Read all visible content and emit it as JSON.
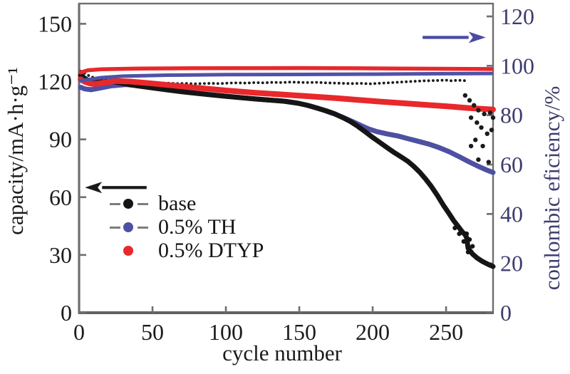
{
  "figure": {
    "xlabel": "cycle number",
    "ylabel_left": "capacity/mA·h·g⁻¹",
    "ylabel_right": "coulombic eficiency/%"
  },
  "legend": {
    "items": [
      {
        "label": "base",
        "marker_color": "#151515",
        "line": true
      },
      {
        "label": "0.5% TH",
        "marker_color": "#4e50a2",
        "line": true
      },
      {
        "label": "0.5% DTYP",
        "marker_color": "#e8282b",
        "line": false
      }
    ]
  },
  "chart_data": {
    "type": "line",
    "xlabel": "cycle number",
    "ylabel_left": "capacity/mA·h·g⁻¹",
    "ylabel_right": "coulombic eficiency/%",
    "xlim": [
      0,
      282
    ],
    "xticks": [
      0,
      50,
      100,
      150,
      200,
      250
    ],
    "ylim_left": [
      0,
      160.5
    ],
    "yticks_left": [
      0,
      30,
      60,
      90,
      120,
      150
    ],
    "ylim_right": [
      0,
      125.2
    ],
    "yticks_right": [
      0,
      20,
      40,
      60,
      80,
      100,
      120
    ],
    "grid": false,
    "legend_position": "lower-left-inside",
    "axis_colors": {
      "left": "#1c1c1c",
      "bottom": "#1c1c1c",
      "right": "#3d3d6e",
      "frame": "#6e6e6e"
    },
    "series": [
      {
        "name": "base-efficiency",
        "axis": "right",
        "color": "#1b1b1b",
        "width": 3.8,
        "style": "dotted",
        "points": [
          [
            1,
            97.8
          ],
          [
            3,
            97.2
          ],
          [
            5,
            96.5
          ],
          [
            8,
            95.6
          ],
          [
            12,
            94.9
          ],
          [
            16,
            94.5
          ],
          [
            20,
            94.4
          ],
          [
            25,
            94.0
          ],
          [
            30,
            93.9
          ],
          [
            35,
            93.6
          ],
          [
            40,
            93.6
          ],
          [
            45,
            93.3
          ],
          [
            50,
            93.2
          ],
          [
            55,
            93.0
          ],
          [
            60,
            93.0
          ],
          [
            66,
            92.8
          ],
          [
            72,
            92.9
          ],
          [
            78,
            92.7
          ],
          [
            84,
            92.8
          ],
          [
            90,
            92.9
          ],
          [
            96,
            92.8
          ],
          [
            102,
            93.0
          ],
          [
            108,
            93.1
          ],
          [
            114,
            93.0
          ],
          [
            120,
            93.2
          ],
          [
            126,
            93.1
          ],
          [
            132,
            93.3
          ],
          [
            138,
            93.2
          ],
          [
            144,
            93.4
          ],
          [
            150,
            93.3
          ],
          [
            156,
            93.2
          ],
          [
            162,
            93.3
          ],
          [
            168,
            93.1
          ],
          [
            174,
            93.0
          ],
          [
            180,
            92.9
          ],
          [
            186,
            92.8
          ],
          [
            192,
            92.9
          ],
          [
            198,
            92.7
          ],
          [
            204,
            92.9
          ],
          [
            210,
            93.1
          ],
          [
            216,
            93.3
          ],
          [
            222,
            93.5
          ],
          [
            228,
            93.7
          ],
          [
            234,
            93.9
          ],
          [
            240,
            94.0
          ],
          [
            246,
            94.1
          ],
          [
            250,
            94.2
          ],
          [
            254,
            93.9
          ],
          [
            258,
            94.2
          ],
          [
            261,
            94.0
          ],
          [
            264,
            94.0
          ]
        ]
      },
      {
        "name": "th-capacity",
        "axis": "left",
        "color": "#4e50a2",
        "width": 7,
        "style": "solid",
        "points": [
          [
            1,
            117.0
          ],
          [
            4,
            116.2
          ],
          [
            8,
            115.8
          ],
          [
            14,
            116.6
          ],
          [
            22,
            117.8
          ],
          [
            32,
            118.5
          ],
          [
            45,
            117.4
          ],
          [
            60,
            115.8
          ],
          [
            80,
            114.0
          ],
          [
            100,
            112.4
          ],
          [
            120,
            111.0
          ],
          [
            140,
            109.8
          ],
          [
            150,
            108.7
          ],
          [
            158,
            107.2
          ],
          [
            166,
            105.3
          ],
          [
            174,
            103.2
          ],
          [
            181,
            101.0
          ],
          [
            187,
            99.0
          ],
          [
            192,
            97.2
          ],
          [
            197,
            95.5
          ],
          [
            203,
            94.0
          ],
          [
            210,
            92.8
          ],
          [
            217,
            91.8
          ],
          [
            224,
            90.4
          ],
          [
            231,
            89.0
          ],
          [
            238,
            87.6
          ],
          [
            245,
            85.8
          ],
          [
            252,
            83.6
          ],
          [
            259,
            81.0
          ],
          [
            266,
            78.2
          ],
          [
            272,
            76.0
          ],
          [
            277,
            74.3
          ],
          [
            282,
            72.8
          ]
        ]
      },
      {
        "name": "base-capacity",
        "axis": "left",
        "color": "#151515",
        "width": 7,
        "style": "solid",
        "points": [
          [
            1,
            123.3
          ],
          [
            3,
            122.2
          ],
          [
            6,
            120.6
          ],
          [
            10,
            119.4
          ],
          [
            15,
            119.8
          ],
          [
            22,
            120.1
          ],
          [
            30,
            119.0
          ],
          [
            40,
            117.8
          ],
          [
            50,
            116.7
          ],
          [
            60,
            115.7
          ],
          [
            70,
            114.7
          ],
          [
            80,
            113.9
          ],
          [
            90,
            113.1
          ],
          [
            100,
            112.4
          ],
          [
            110,
            111.7
          ],
          [
            120,
            111.0
          ],
          [
            130,
            110.4
          ],
          [
            140,
            109.8
          ],
          [
            148,
            108.9
          ],
          [
            155,
            107.8
          ],
          [
            162,
            106.3
          ],
          [
            168,
            104.9
          ],
          [
            174,
            103.3
          ],
          [
            180,
            101.2
          ],
          [
            185,
            99.2
          ],
          [
            190,
            96.7
          ],
          [
            195,
            93.9
          ],
          [
            200,
            91.0
          ],
          [
            205,
            88.3
          ],
          [
            210,
            85.6
          ],
          [
            215,
            83.0
          ],
          [
            220,
            80.6
          ],
          [
            224,
            78.6
          ],
          [
            228,
            76.0
          ],
          [
            232,
            73.0
          ],
          [
            236,
            69.5
          ],
          [
            240,
            65.5
          ],
          [
            244,
            61.0
          ],
          [
            248,
            56.0
          ],
          [
            252,
            51.5
          ],
          [
            255,
            48.0
          ],
          [
            258,
            45.0
          ],
          [
            261,
            42.0
          ],
          [
            263,
            40.5
          ],
          [
            264,
            39.0
          ],
          [
            265,
            33.5
          ],
          [
            268,
            30.5
          ],
          [
            271,
            28.5
          ],
          [
            275,
            26.5
          ],
          [
            279,
            25.0
          ],
          [
            282,
            24.0
          ]
        ]
      },
      {
        "name": "dtyp-capacity",
        "axis": "left",
        "color": "#e8282b",
        "width": 8,
        "style": "solid",
        "points": [
          [
            1,
            121.2
          ],
          [
            4,
            119.9
          ],
          [
            8,
            118.9
          ],
          [
            12,
            118.8
          ],
          [
            18,
            119.6
          ],
          [
            25,
            120.3
          ],
          [
            35,
            120.0
          ],
          [
            50,
            119.0
          ],
          [
            65,
            117.9
          ],
          [
            80,
            116.8
          ],
          [
            100,
            115.4
          ],
          [
            120,
            114.2
          ],
          [
            140,
            113.2
          ],
          [
            160,
            112.2
          ],
          [
            175,
            111.4
          ],
          [
            190,
            110.5
          ],
          [
            205,
            109.6
          ],
          [
            220,
            108.8
          ],
          [
            235,
            108.0
          ],
          [
            250,
            107.2
          ],
          [
            265,
            106.3
          ],
          [
            275,
            105.8
          ],
          [
            282,
            105.5
          ]
        ]
      },
      {
        "name": "th-efficiency",
        "axis": "right",
        "color": "#5052a6",
        "width": 5,
        "style": "solid",
        "points": [
          [
            1,
            93.9
          ],
          [
            5,
            94.3
          ],
          [
            15,
            95.2
          ],
          [
            30,
            95.8
          ],
          [
            60,
            96.2
          ],
          [
            100,
            96.4
          ],
          [
            150,
            96.5
          ],
          [
            200,
            96.6
          ],
          [
            250,
            96.8
          ],
          [
            281,
            96.9
          ]
        ]
      },
      {
        "name": "dtyp-efficiency",
        "axis": "right",
        "color": "#e8282b",
        "width": 5.5,
        "style": "solid",
        "points": [
          [
            1,
            97.3
          ],
          [
            6,
            98.2
          ],
          [
            15,
            98.6
          ],
          [
            40,
            98.9
          ],
          [
            80,
            99.0
          ],
          [
            150,
            99.1
          ],
          [
            220,
            98.9
          ],
          [
            281,
            98.7
          ]
        ]
      }
    ],
    "scatter": [
      {
        "name": "base-efficiency-fade-dots",
        "axis": "right",
        "color": "#1b1b1b",
        "r": 3.2,
        "points": [
          [
            263,
            88.0
          ],
          [
            266,
            86.0
          ],
          [
            269,
            84.0
          ],
          [
            272,
            82.0
          ],
          [
            276,
            80.5
          ],
          [
            280,
            81.0
          ],
          [
            282,
            79.0
          ],
          [
            267,
            79.0
          ],
          [
            271,
            77.0
          ],
          [
            274,
            75.0
          ],
          [
            281,
            74.0
          ],
          [
            278,
            72.5
          ],
          [
            270,
            70.0
          ],
          [
            267,
            67.5
          ],
          [
            275,
            67.5
          ],
          [
            272,
            62.0
          ],
          [
            279,
            61.0
          ]
        ]
      },
      {
        "name": "base-capacity-fade-dots",
        "axis": "left",
        "color": "#151515",
        "r": 3.2,
        "points": [
          [
            256,
            44.0
          ],
          [
            259,
            41.0
          ],
          [
            262,
            37.0
          ],
          [
            264,
            41.0
          ],
          [
            266,
            38.0
          ],
          [
            268,
            34.5
          ],
          [
            265,
            31.5
          ]
        ]
      }
    ],
    "arrows": [
      {
        "name": "capacity-axis-arrow",
        "axis": "left",
        "color": "#1a1a1a",
        "y": 65.0,
        "x_from": 46,
        "x_to": 4
      },
      {
        "name": "efficiency-axis-arrow",
        "axis": "right",
        "color": "#4a4ba5",
        "y": 111.5,
        "x_from": 234,
        "x_to": 277
      }
    ]
  }
}
